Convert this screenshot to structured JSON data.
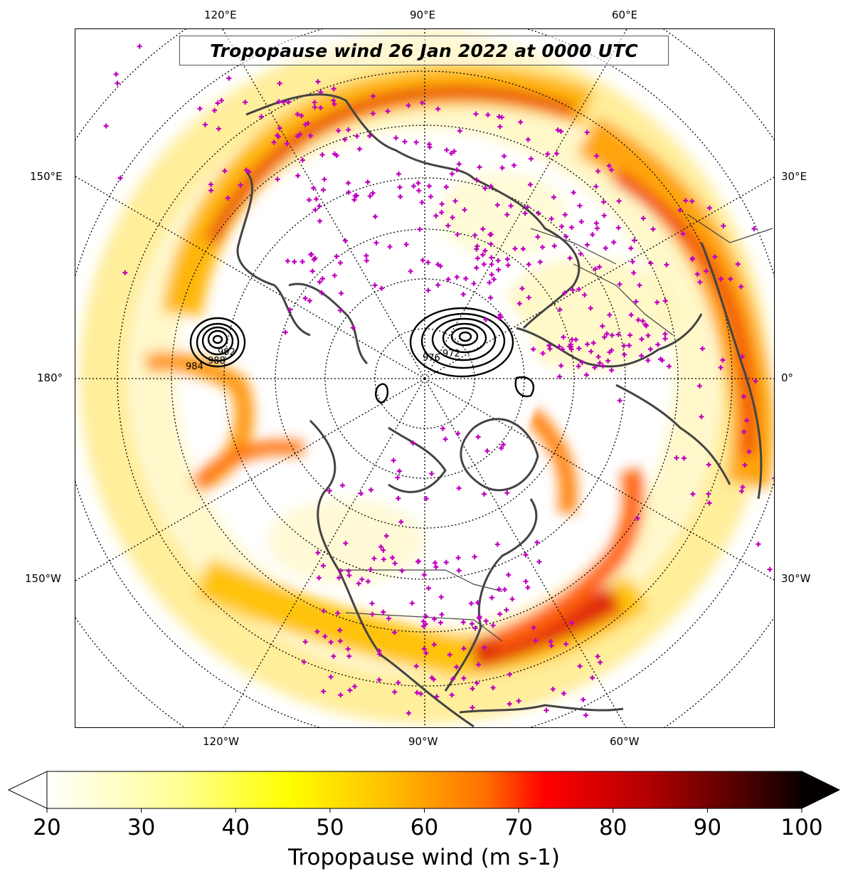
{
  "title": "Tropopause wind 26 Jan 2022 at 0000 UTC",
  "longitude_labels": {
    "top": [
      "120°E",
      "90°E",
      "60°E"
    ],
    "left": [
      "150°E",
      "180°",
      "150°W"
    ],
    "right": [
      "30°E",
      "0°",
      "30°W"
    ],
    "bottom": [
      "120°W",
      "90°W",
      "60°W"
    ]
  },
  "contour_labels": [
    "984",
    "988",
    "992",
    "976",
    "972"
  ],
  "colorbar": {
    "label": "Tropopause wind (m s-1)",
    "ticks": [
      "20",
      "30",
      "40",
      "50",
      "60",
      "70",
      "80",
      "90",
      "100"
    ],
    "min": 20,
    "max": 100,
    "extend": "both",
    "colormap": "hot_r"
  },
  "colors": {
    "coastline": "#444444",
    "station_marker": "#c000c0",
    "contour": "#000000",
    "gridline": "#000000"
  }
}
